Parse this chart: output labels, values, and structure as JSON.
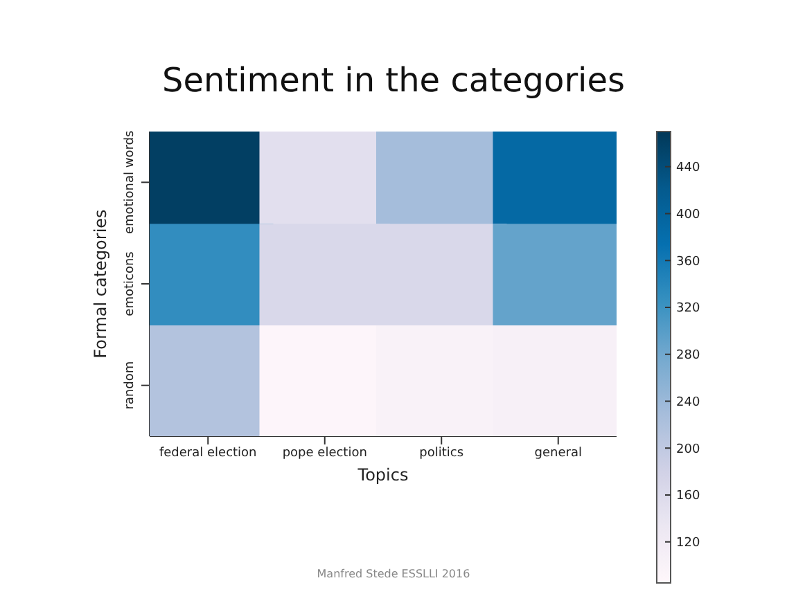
{
  "chart_data": {
    "type": "heatmap",
    "title": "Sentiment in the categories",
    "xlabel": "Topics",
    "ylabel": "Formal categories",
    "categories": [
      "federal election",
      "pope election",
      "politics",
      "general"
    ],
    "y_categories": [
      "emotional words",
      "emoticons",
      "random"
    ],
    "cells": [
      [
        460,
        150,
        230,
        390
      ],
      [
        330,
        165,
        165,
        290
      ],
      [
        215,
        90,
        100,
        105
      ]
    ],
    "clim": [
      85,
      470
    ],
    "cticks": [
      120,
      160,
      200,
      240,
      280,
      320,
      360,
      400,
      440
    ],
    "annotations": [
      "Manfred Stede ESSLLI 2016"
    ]
  }
}
